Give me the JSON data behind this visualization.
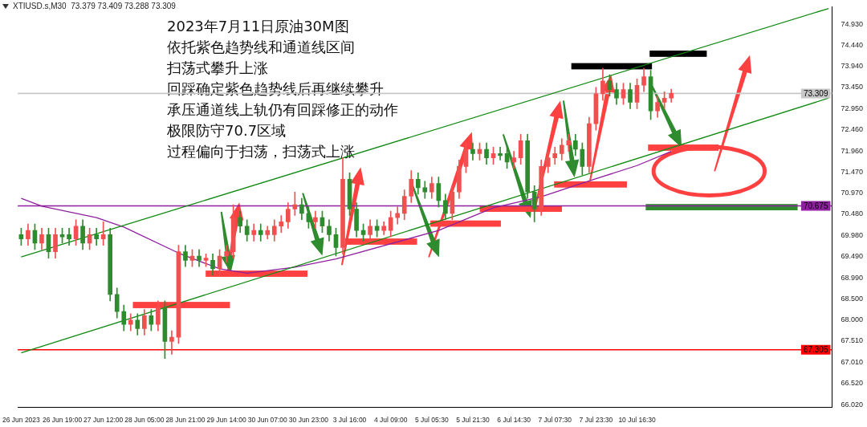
{
  "chart_data": {
    "type": "candlestick",
    "title": "XTIUSD.s,M30  73.379 73.409 73.288 73.309",
    "annotations": [
      "2023年7月11日原油30M图",
      "依托紫色趋势线和通道线区间",
      "扫荡式攀升上涨",
      "回踩确定紫色趋势线后再继续攀升",
      "承压通道线上轨仍有回踩修正的动作",
      "极限防守70.7区域",
      "过程偏向于扫荡，扫荡式上涨"
    ],
    "categories": [
      "26 Jun 2023",
      null,
      null,
      null,
      null,
      null,
      "26 Jun 19:00",
      null,
      null,
      null,
      null,
      null,
      "27 Jun 12:00",
      null,
      null,
      null,
      null,
      null,
      "28 Jun 05:00",
      null,
      null,
      null,
      null,
      null,
      "28 Jun 21:00",
      null,
      null,
      null,
      null,
      null,
      "29 Jun 14:00",
      null,
      null,
      null,
      null,
      null,
      "30 Jun 07:00",
      null,
      null,
      null,
      null,
      null,
      "30 Jun 23:00",
      null,
      null,
      null,
      null,
      null,
      "3 Jul 16:00",
      null,
      null,
      null,
      null,
      null,
      "4 Jul 09:00",
      null,
      null,
      null,
      null,
      null,
      "5 Jul 05:30",
      null,
      null,
      null,
      null,
      null,
      "5 Jul 21:30",
      null,
      null,
      null,
      null,
      null,
      "6 Jul 14:30",
      null,
      null,
      null,
      null,
      null,
      "7 Jul 07:30",
      null,
      null,
      null,
      null,
      null,
      "7 Jul 23:30",
      null,
      null,
      null,
      null,
      null,
      "10 Jul 16:30",
      null,
      null,
      null,
      null,
      null,
      null,
      null,
      null,
      null,
      null,
      null,
      null,
      null,
      null,
      null,
      null,
      null,
      null,
      null,
      null,
      null,
      null,
      null,
      null,
      null,
      null,
      null,
      null
    ],
    "ohlc": [
      [
        70.0,
        70.15,
        69.75,
        69.9
      ],
      [
        69.9,
        70.25,
        69.75,
        70.1
      ],
      [
        70.1,
        70.25,
        69.65,
        69.8
      ],
      [
        69.8,
        70.15,
        69.65,
        70.0
      ],
      [
        70.0,
        70.15,
        69.45,
        69.6
      ],
      [
        69.6,
        70.15,
        69.45,
        70.0
      ],
      [
        70.0,
        70.15,
        69.8,
        69.95
      ],
      [
        70.0,
        70.15,
        69.75,
        69.9
      ],
      [
        69.9,
        70.35,
        69.75,
        70.2
      ],
      [
        70.2,
        70.35,
        69.65,
        69.8
      ],
      [
        69.8,
        70.15,
        69.65,
        70.0
      ],
      [
        70.0,
        70.15,
        69.75,
        69.9
      ],
      [
        69.9,
        70.3,
        69.75,
        70.0
      ],
      [
        70.0,
        70.15,
        68.45,
        68.6
      ],
      [
        68.6,
        68.75,
        68.05,
        68.2
      ],
      [
        68.2,
        68.35,
        67.75,
        67.9
      ],
      [
        67.9,
        68.15,
        67.75,
        68.0
      ],
      [
        68.0,
        68.15,
        67.65,
        67.8
      ],
      [
        67.8,
        68.25,
        67.65,
        68.1
      ],
      [
        68.1,
        68.25,
        67.75,
        67.9
      ],
      [
        67.9,
        68.45,
        67.75,
        68.3
      ],
      [
        68.3,
        68.45,
        67.1,
        67.5
      ],
      [
        67.5,
        67.75,
        67.2,
        67.6
      ],
      [
        67.6,
        69.75,
        67.45,
        69.6
      ],
      [
        69.6,
        69.75,
        69.25,
        69.4
      ],
      [
        69.4,
        69.65,
        69.25,
        69.5
      ],
      [
        69.5,
        69.65,
        69.25,
        69.4
      ],
      [
        69.4,
        69.55,
        69.25,
        69.45
      ],
      [
        69.4,
        69.55,
        69.05,
        69.2
      ],
      [
        69.2,
        69.65,
        69.05,
        69.5
      ],
      [
        69.5,
        69.75,
        69.35,
        69.6
      ],
      [
        69.6,
        70.7,
        69.45,
        70.4
      ],
      [
        70.4,
        70.55,
        70.05,
        70.2
      ],
      [
        70.2,
        70.35,
        69.85,
        70.0
      ],
      [
        70.0,
        70.25,
        69.85,
        70.1
      ],
      [
        70.1,
        70.25,
        69.85,
        70.0
      ],
      [
        70.0,
        70.2,
        69.9,
        70.1
      ],
      [
        70.0,
        70.35,
        69.85,
        70.2
      ],
      [
        70.2,
        70.45,
        70.05,
        70.3
      ],
      [
        70.3,
        70.75,
        70.15,
        70.6
      ],
      [
        70.6,
        71.0,
        70.45,
        70.7
      ],
      [
        70.7,
        70.85,
        70.35,
        70.5
      ],
      [
        70.5,
        70.65,
        70.15,
        70.3
      ],
      [
        70.3,
        70.55,
        70.15,
        70.4
      ],
      [
        70.4,
        70.55,
        70.05,
        70.2
      ],
      [
        70.2,
        70.35,
        69.85,
        70.0
      ],
      [
        70.0,
        70.15,
        69.5,
        69.7
      ],
      [
        69.7,
        71.8,
        69.55,
        71.3
      ],
      [
        71.3,
        71.45,
        70.45,
        70.6
      ],
      [
        70.6,
        70.75,
        69.95,
        70.1
      ],
      [
        70.1,
        70.25,
        69.85,
        70.0
      ],
      [
        70.0,
        70.35,
        69.85,
        70.2
      ],
      [
        70.2,
        70.35,
        69.95,
        70.1
      ],
      [
        70.1,
        70.3,
        70.0,
        70.2
      ],
      [
        70.1,
        70.55,
        69.95,
        70.4
      ],
      [
        70.4,
        70.65,
        70.25,
        70.5
      ],
      [
        70.5,
        71.05,
        70.35,
        70.9
      ],
      [
        70.9,
        71.5,
        70.75,
        71.3
      ],
      [
        71.3,
        71.45,
        70.95,
        71.1
      ],
      [
        71.1,
        71.25,
        70.85,
        71.0
      ],
      [
        71.0,
        71.35,
        70.85,
        71.2
      ],
      [
        71.2,
        71.35,
        70.65,
        70.8
      ],
      [
        70.8,
        70.95,
        70.35,
        70.5
      ],
      [
        70.5,
        71.15,
        70.35,
        71.0
      ],
      [
        71.0,
        71.75,
        70.85,
        71.6
      ],
      [
        71.6,
        72.15,
        71.45,
        72.0
      ],
      [
        72.0,
        72.15,
        71.75,
        71.9
      ],
      [
        71.9,
        72.15,
        71.75,
        72.0
      ],
      [
        72.0,
        72.15,
        71.65,
        71.8
      ],
      [
        71.8,
        72.05,
        71.65,
        71.9
      ],
      [
        71.9,
        72.05,
        71.75,
        71.85
      ],
      [
        71.9,
        72.05,
        71.55,
        71.7
      ],
      [
        71.7,
        71.95,
        71.55,
        71.8
      ],
      [
        71.8,
        72.35,
        71.65,
        72.2
      ],
      [
        72.2,
        72.35,
        70.85,
        71.0
      ],
      [
        71.0,
        71.15,
        70.3,
        70.6
      ],
      [
        70.6,
        71.75,
        70.45,
        71.6
      ],
      [
        71.6,
        71.95,
        71.45,
        71.8
      ],
      [
        71.8,
        72.05,
        71.65,
        71.9
      ],
      [
        71.9,
        72.25,
        71.75,
        72.1
      ],
      [
        72.1,
        72.35,
        71.95,
        72.2
      ],
      [
        72.2,
        72.35,
        71.85,
        72.0
      ],
      [
        72.0,
        72.15,
        71.4,
        71.6
      ],
      [
        71.6,
        72.75,
        71.45,
        72.6
      ],
      [
        72.6,
        73.45,
        72.45,
        73.3
      ],
      [
        73.3,
        73.9,
        73.15,
        73.6
      ],
      [
        73.6,
        73.75,
        73.25,
        73.4
      ],
      [
        73.4,
        73.55,
        73.05,
        73.2
      ],
      [
        73.2,
        73.55,
        73.05,
        73.4
      ],
      [
        73.4,
        73.55,
        72.95,
        73.1
      ],
      [
        73.1,
        73.65,
        72.95,
        73.5
      ],
      [
        73.5,
        73.9,
        73.35,
        73.7
      ],
      [
        73.7,
        73.85,
        72.7,
        72.9
      ],
      [
        72.9,
        73.25,
        72.75,
        73.1
      ],
      [
        73.1,
        73.35,
        72.95,
        73.2
      ],
      [
        73.2,
        73.41,
        73.1,
        73.31
      ],
      null,
      null,
      null,
      null,
      null,
      null,
      null,
      null,
      null,
      null,
      null,
      null,
      null,
      null,
      null,
      null,
      null,
      null,
      null,
      null,
      null,
      null,
      null
    ],
    "series": [
      {
        "type": "line",
        "color": "#138a13",
        "values": [
          69.48,
          null,
          null,
          null,
          null,
          null,
          null,
          null,
          null,
          null,
          null,
          null,
          null,
          null,
          null,
          null,
          null,
          null,
          null,
          null,
          null,
          null,
          null,
          null,
          null,
          null,
          null,
          null,
          null,
          null,
          null,
          null,
          null,
          null,
          null,
          null,
          null,
          null,
          null,
          null,
          null,
          null,
          null,
          null,
          null,
          null,
          null,
          null,
          null,
          null,
          null,
          null,
          null,
          null,
          null,
          null,
          null,
          null,
          null,
          null,
          null,
          null,
          null,
          null,
          null,
          null,
          null,
          null,
          null,
          null,
          null,
          null,
          null,
          null,
          null,
          null,
          null,
          null,
          null,
          null,
          null,
          null,
          null,
          null,
          null,
          null,
          null,
          null,
          null,
          null,
          null,
          null,
          null,
          null,
          null,
          null,
          null,
          null,
          null,
          null,
          null,
          null,
          null,
          null,
          null,
          null,
          null,
          null,
          null,
          null,
          null,
          null,
          null,
          null,
          null,
          null,
          null,
          null,
          75.3
        ]
      },
      {
        "type": "line",
        "color": "#138a13",
        "values": [
          67.23,
          null,
          null,
          null,
          null,
          null,
          null,
          null,
          null,
          null,
          null,
          null,
          null,
          null,
          null,
          null,
          null,
          null,
          null,
          null,
          null,
          null,
          null,
          null,
          null,
          null,
          null,
          null,
          null,
          null,
          null,
          null,
          null,
          null,
          null,
          null,
          null,
          null,
          null,
          null,
          null,
          null,
          null,
          null,
          null,
          null,
          null,
          null,
          null,
          null,
          null,
          null,
          null,
          null,
          null,
          null,
          null,
          null,
          null,
          null,
          null,
          null,
          null,
          null,
          null,
          null,
          null,
          null,
          null,
          null,
          null,
          null,
          null,
          null,
          null,
          null,
          null,
          null,
          null,
          null,
          null,
          null,
          null,
          null,
          null,
          null,
          null,
          null,
          null,
          null,
          null,
          null,
          null,
          null,
          null,
          null,
          null,
          null,
          null,
          null,
          null,
          null,
          null,
          null,
          null,
          null,
          null,
          null,
          null,
          null,
          null,
          null,
          null,
          null,
          null,
          null,
          null,
          null,
          73.2
        ]
      },
      {
        "type": "line",
        "color": "#8e1f9e",
        "values": [
          70.85,
          null,
          null,
          70.67,
          null,
          null,
          null,
          null,
          null,
          null,
          null,
          70.4,
          null,
          null,
          null,
          70.18,
          null,
          null,
          null,
          null,
          null,
          null,
          null,
          69.57,
          null,
          null,
          null,
          null,
          null,
          69.2,
          null,
          null,
          null,
          69.1,
          null,
          null,
          null,
          null,
          null,
          null,
          69.24,
          null,
          null,
          null,
          null,
          null,
          69.43,
          null,
          null,
          null,
          null,
          null,
          null,
          null,
          null,
          null,
          null,
          null,
          null,
          null,
          null,
          70.1,
          null,
          null,
          null,
          null,
          null,
          null,
          null,
          70.63,
          null,
          null,
          null,
          null,
          null,
          null,
          70.89,
          null,
          null,
          null,
          null,
          null,
          null,
          null,
          71.31,
          null,
          null,
          null,
          null,
          null,
          71.62,
          null,
          null,
          null,
          null,
          71.95,
          null,
          null,
          null,
          null,
          null,
          null,
          null,
          null,
          null,
          null,
          null,
          null,
          null,
          null,
          null,
          null,
          null,
          null,
          null,
          null,
          null,
          null,
          null
        ]
      }
    ],
    "ylim": [
      65.95,
      75.34
    ],
    "yticks": [
      {
        "value": 66.02,
        "label": "66.020"
      },
      {
        "value": 66.52,
        "label": "66.520"
      },
      {
        "value": 67.01,
        "label": "67.010"
      },
      {
        "value": 67.51,
        "label": "67.510"
      },
      {
        "value": 68.0,
        "label": "68.000"
      },
      {
        "value": 68.5,
        "label": "68.500"
      },
      {
        "value": 68.99,
        "label": "68.990"
      },
      {
        "value": 69.49,
        "label": "69.490"
      },
      {
        "value": 69.98,
        "label": "69.980"
      },
      {
        "value": 70.48,
        "label": "70.480"
      },
      {
        "value": 70.97,
        "label": "70.970"
      },
      {
        "value": 71.47,
        "label": "71.470"
      },
      {
        "value": 71.96,
        "label": "71.960"
      },
      {
        "value": 72.46,
        "label": "72.460"
      },
      {
        "value": 72.95,
        "label": "72.950"
      },
      {
        "value": 73.45,
        "label": "73.450"
      },
      {
        "value": 73.94,
        "label": "73.940"
      },
      {
        "value": 74.44,
        "label": "74.440"
      },
      {
        "value": 74.93,
        "label": "74.930"
      }
    ],
    "ref_lines": [
      {
        "axis": "y",
        "value": 70.675,
        "label": "70.675",
        "color": "#8e1f9e"
      },
      {
        "axis": "y",
        "value": 67.305,
        "label": "67.305",
        "color": "#ff0000"
      },
      {
        "axis": "y",
        "value": 73.309,
        "label": "73.309",
        "color": "#c8c8c8"
      }
    ],
    "marker": "none",
    "grid": false,
    "legend": false
  }
}
